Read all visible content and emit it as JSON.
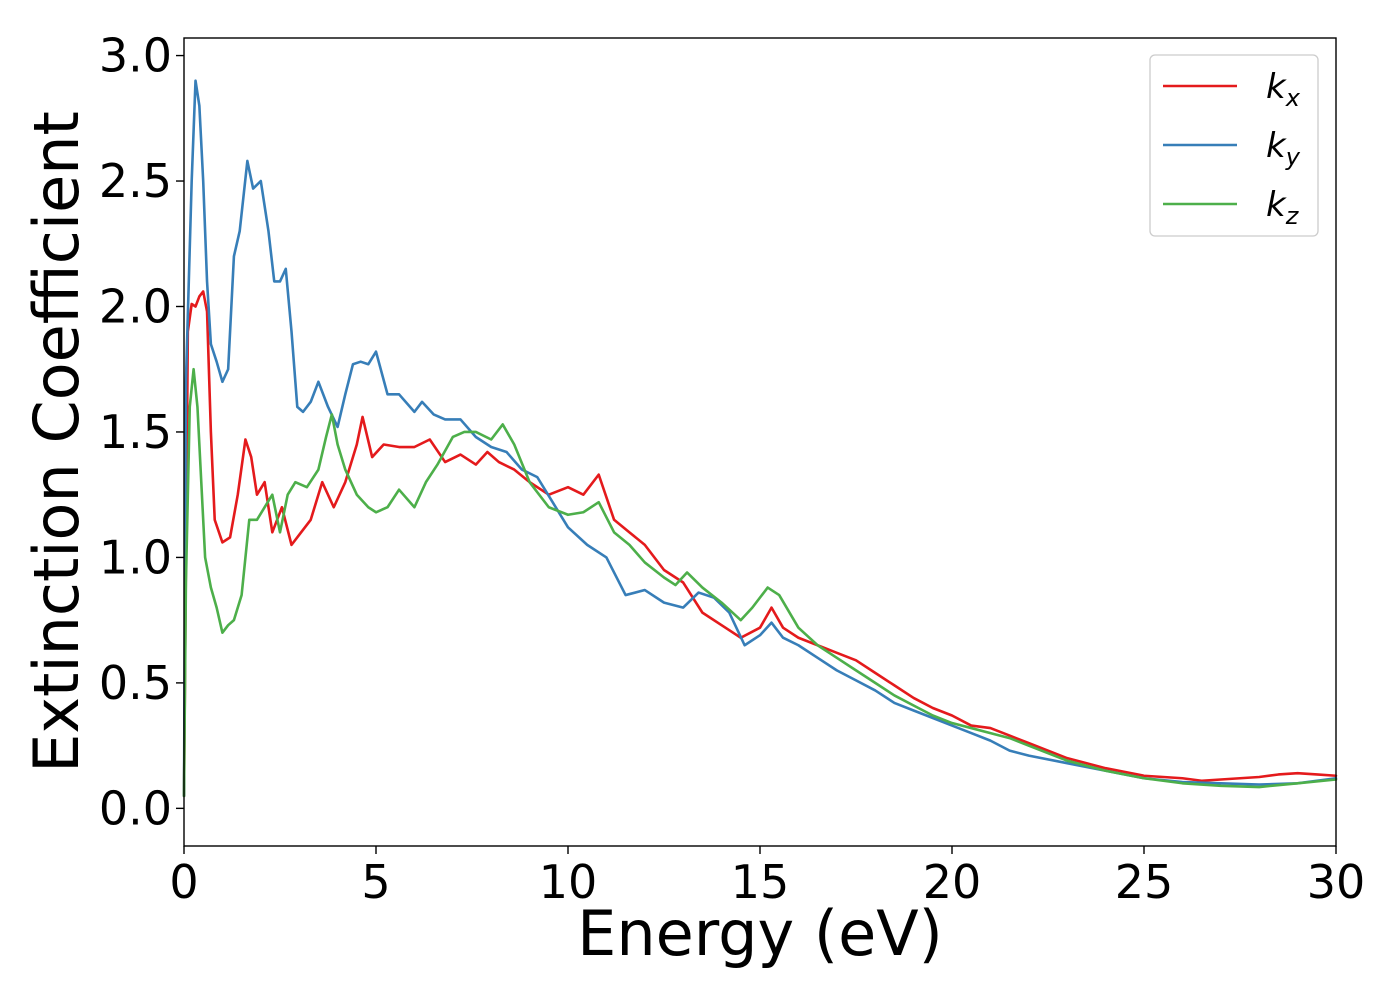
{
  "chart_data": {
    "type": "line",
    "title": "",
    "xlabel": "Energy (eV)",
    "ylabel": "Extinction Coefficient",
    "xlim": [
      0,
      30
    ],
    "ylim": [
      -0.15,
      3.07
    ],
    "xticks": [
      0,
      5,
      10,
      15,
      20,
      25,
      30
    ],
    "xtick_labels": [
      "0",
      "5",
      "10",
      "15",
      "20",
      "25",
      "30"
    ],
    "yticks": [
      0.0,
      0.5,
      1.0,
      1.5,
      2.0,
      2.5,
      3.0
    ],
    "ytick_labels": [
      "0.0",
      "0.5",
      "1.0",
      "1.5",
      "2.0",
      "2.5",
      "3.0"
    ],
    "grid": false,
    "legend_position": "top-right",
    "series": [
      {
        "name": "kx",
        "label_main": "k",
        "label_sub": "x",
        "color": "#e41a1c",
        "points": [
          [
            0,
            0.05
          ],
          [
            0.1,
            1.9
          ],
          [
            0.2,
            2.01
          ],
          [
            0.3,
            2.0
          ],
          [
            0.4,
            2.04
          ],
          [
            0.5,
            2.06
          ],
          [
            0.6,
            1.98
          ],
          [
            0.7,
            1.5
          ],
          [
            0.8,
            1.15
          ],
          [
            1.0,
            1.06
          ],
          [
            1.2,
            1.08
          ],
          [
            1.4,
            1.25
          ],
          [
            1.6,
            1.47
          ],
          [
            1.75,
            1.4
          ],
          [
            1.9,
            1.25
          ],
          [
            2.1,
            1.3
          ],
          [
            2.3,
            1.1
          ],
          [
            2.55,
            1.2
          ],
          [
            2.8,
            1.05
          ],
          [
            3.05,
            1.1
          ],
          [
            3.3,
            1.15
          ],
          [
            3.6,
            1.3
          ],
          [
            3.9,
            1.2
          ],
          [
            4.2,
            1.3
          ],
          [
            4.5,
            1.45
          ],
          [
            4.65,
            1.56
          ],
          [
            4.9,
            1.4
          ],
          [
            5.2,
            1.45
          ],
          [
            5.6,
            1.44
          ],
          [
            6.0,
            1.44
          ],
          [
            6.4,
            1.47
          ],
          [
            6.8,
            1.38
          ],
          [
            7.2,
            1.41
          ],
          [
            7.6,
            1.37
          ],
          [
            7.9,
            1.42
          ],
          [
            8.2,
            1.38
          ],
          [
            8.6,
            1.35
          ],
          [
            9.0,
            1.3
          ],
          [
            9.5,
            1.25
          ],
          [
            10.0,
            1.28
          ],
          [
            10.4,
            1.25
          ],
          [
            10.8,
            1.33
          ],
          [
            11.2,
            1.15
          ],
          [
            11.6,
            1.1
          ],
          [
            12.0,
            1.05
          ],
          [
            12.5,
            0.95
          ],
          [
            13.0,
            0.9
          ],
          [
            13.5,
            0.78
          ],
          [
            14.0,
            0.73
          ],
          [
            14.5,
            0.68
          ],
          [
            15.0,
            0.72
          ],
          [
            15.3,
            0.8
          ],
          [
            15.6,
            0.72
          ],
          [
            16.0,
            0.68
          ],
          [
            16.5,
            0.65
          ],
          [
            17.0,
            0.62
          ],
          [
            17.5,
            0.59
          ],
          [
            18.0,
            0.54
          ],
          [
            18.5,
            0.49
          ],
          [
            19.0,
            0.44
          ],
          [
            19.5,
            0.4
          ],
          [
            20.0,
            0.37
          ],
          [
            20.5,
            0.33
          ],
          [
            21.0,
            0.32
          ],
          [
            21.5,
            0.29
          ],
          [
            22.0,
            0.26
          ],
          [
            23.0,
            0.2
          ],
          [
            24.0,
            0.16
          ],
          [
            25.0,
            0.13
          ],
          [
            26.0,
            0.12
          ],
          [
            26.5,
            0.11
          ],
          [
            27.0,
            0.115
          ],
          [
            27.5,
            0.12
          ],
          [
            28.0,
            0.125
          ],
          [
            28.5,
            0.135
          ],
          [
            29.0,
            0.14
          ],
          [
            29.5,
            0.135
          ],
          [
            30.0,
            0.13
          ]
        ]
      },
      {
        "name": "ky",
        "label_main": "k",
        "label_sub": "y",
        "color": "#377eb8",
        "points": [
          [
            0,
            0.05
          ],
          [
            0.05,
            1.7
          ],
          [
            0.2,
            2.5
          ],
          [
            0.3,
            2.9
          ],
          [
            0.4,
            2.8
          ],
          [
            0.5,
            2.5
          ],
          [
            0.6,
            2.1
          ],
          [
            0.7,
            1.85
          ],
          [
            0.85,
            1.78
          ],
          [
            1.0,
            1.7
          ],
          [
            1.15,
            1.75
          ],
          [
            1.3,
            2.2
          ],
          [
            1.45,
            2.3
          ],
          [
            1.65,
            2.58
          ],
          [
            1.8,
            2.47
          ],
          [
            2.0,
            2.5
          ],
          [
            2.2,
            2.3
          ],
          [
            2.35,
            2.1
          ],
          [
            2.5,
            2.1
          ],
          [
            2.65,
            2.15
          ],
          [
            2.8,
            1.9
          ],
          [
            2.95,
            1.6
          ],
          [
            3.1,
            1.58
          ],
          [
            3.3,
            1.62
          ],
          [
            3.5,
            1.7
          ],
          [
            3.75,
            1.6
          ],
          [
            4.0,
            1.52
          ],
          [
            4.2,
            1.65
          ],
          [
            4.4,
            1.77
          ],
          [
            4.6,
            1.78
          ],
          [
            4.8,
            1.77
          ],
          [
            5.0,
            1.82
          ],
          [
            5.3,
            1.65
          ],
          [
            5.6,
            1.65
          ],
          [
            6.0,
            1.58
          ],
          [
            6.2,
            1.62
          ],
          [
            6.5,
            1.57
          ],
          [
            6.8,
            1.55
          ],
          [
            7.2,
            1.55
          ],
          [
            7.6,
            1.48
          ],
          [
            8.0,
            1.44
          ],
          [
            8.4,
            1.42
          ],
          [
            8.8,
            1.35
          ],
          [
            9.2,
            1.32
          ],
          [
            9.6,
            1.22
          ],
          [
            10.0,
            1.12
          ],
          [
            10.5,
            1.05
          ],
          [
            11.0,
            1.0
          ],
          [
            11.5,
            0.85
          ],
          [
            12.0,
            0.87
          ],
          [
            12.5,
            0.82
          ],
          [
            13.0,
            0.8
          ],
          [
            13.4,
            0.86
          ],
          [
            13.8,
            0.84
          ],
          [
            14.2,
            0.78
          ],
          [
            14.6,
            0.65
          ],
          [
            15.0,
            0.69
          ],
          [
            15.3,
            0.74
          ],
          [
            15.6,
            0.68
          ],
          [
            16.0,
            0.65
          ],
          [
            16.5,
            0.6
          ],
          [
            17.0,
            0.55
          ],
          [
            17.5,
            0.51
          ],
          [
            18.0,
            0.47
          ],
          [
            18.5,
            0.42
          ],
          [
            19.0,
            0.39
          ],
          [
            19.5,
            0.36
          ],
          [
            20.0,
            0.33
          ],
          [
            20.5,
            0.3
          ],
          [
            21.0,
            0.27
          ],
          [
            21.5,
            0.23
          ],
          [
            22.0,
            0.21
          ],
          [
            23.0,
            0.18
          ],
          [
            24.0,
            0.15
          ],
          [
            25.0,
            0.12
          ],
          [
            26.0,
            0.105
          ],
          [
            27.0,
            0.1
          ],
          [
            28.0,
            0.095
          ],
          [
            29.0,
            0.1
          ],
          [
            30.0,
            0.12
          ]
        ]
      },
      {
        "name": "kz",
        "label_main": "k",
        "label_sub": "z",
        "color": "#4daf4a",
        "points": [
          [
            0,
            0.05
          ],
          [
            0.05,
            0.9
          ],
          [
            0.15,
            1.6
          ],
          [
            0.25,
            1.75
          ],
          [
            0.35,
            1.6
          ],
          [
            0.45,
            1.3
          ],
          [
            0.55,
            1.0
          ],
          [
            0.7,
            0.88
          ],
          [
            0.85,
            0.8
          ],
          [
            1.0,
            0.7
          ],
          [
            1.15,
            0.73
          ],
          [
            1.3,
            0.75
          ],
          [
            1.5,
            0.85
          ],
          [
            1.7,
            1.15
          ],
          [
            1.9,
            1.15
          ],
          [
            2.1,
            1.2
          ],
          [
            2.3,
            1.25
          ],
          [
            2.5,
            1.1
          ],
          [
            2.7,
            1.25
          ],
          [
            2.9,
            1.3
          ],
          [
            3.2,
            1.28
          ],
          [
            3.5,
            1.35
          ],
          [
            3.7,
            1.48
          ],
          [
            3.85,
            1.57
          ],
          [
            4.0,
            1.45
          ],
          [
            4.2,
            1.35
          ],
          [
            4.5,
            1.25
          ],
          [
            4.8,
            1.2
          ],
          [
            5.0,
            1.18
          ],
          [
            5.3,
            1.2
          ],
          [
            5.6,
            1.27
          ],
          [
            6.0,
            1.2
          ],
          [
            6.3,
            1.3
          ],
          [
            6.6,
            1.37
          ],
          [
            7.0,
            1.48
          ],
          [
            7.3,
            1.5
          ],
          [
            7.6,
            1.5
          ],
          [
            8.0,
            1.47
          ],
          [
            8.3,
            1.53
          ],
          [
            8.6,
            1.45
          ],
          [
            9.0,
            1.3
          ],
          [
            9.5,
            1.2
          ],
          [
            10.0,
            1.17
          ],
          [
            10.4,
            1.18
          ],
          [
            10.8,
            1.22
          ],
          [
            11.2,
            1.1
          ],
          [
            11.6,
            1.05
          ],
          [
            12.0,
            0.98
          ],
          [
            12.5,
            0.92
          ],
          [
            12.8,
            0.89
          ],
          [
            13.1,
            0.94
          ],
          [
            13.5,
            0.88
          ],
          [
            14.0,
            0.82
          ],
          [
            14.5,
            0.75
          ],
          [
            14.8,
            0.8
          ],
          [
            15.2,
            0.88
          ],
          [
            15.5,
            0.85
          ],
          [
            16.0,
            0.72
          ],
          [
            16.5,
            0.65
          ],
          [
            17.0,
            0.6
          ],
          [
            17.5,
            0.55
          ],
          [
            18.0,
            0.5
          ],
          [
            18.5,
            0.45
          ],
          [
            19.0,
            0.41
          ],
          [
            19.5,
            0.37
          ],
          [
            20.0,
            0.34
          ],
          [
            20.5,
            0.32
          ],
          [
            21.0,
            0.3
          ],
          [
            21.5,
            0.28
          ],
          [
            22.0,
            0.25
          ],
          [
            23.0,
            0.19
          ],
          [
            24.0,
            0.15
          ],
          [
            25.0,
            0.12
          ],
          [
            26.0,
            0.1
          ],
          [
            27.0,
            0.09
          ],
          [
            28.0,
            0.085
          ],
          [
            29.0,
            0.1
          ],
          [
            30.0,
            0.115
          ]
        ]
      }
    ]
  }
}
